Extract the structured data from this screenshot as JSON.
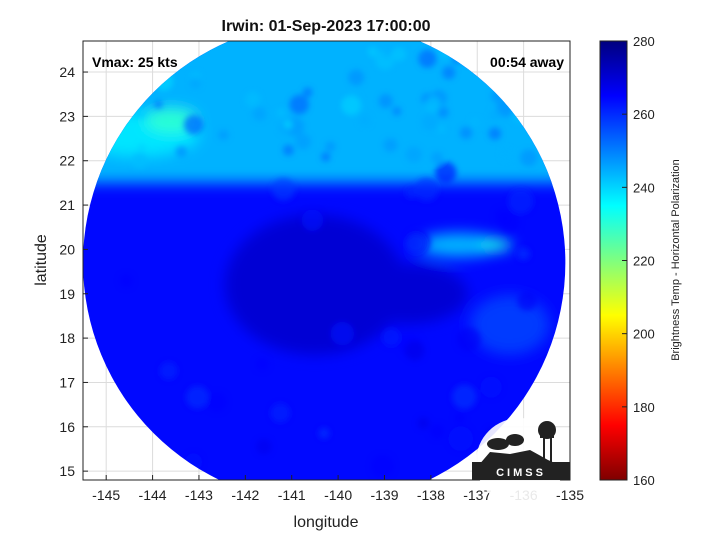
{
  "chart_data": {
    "type": "heatmap",
    "title": "Irwin: 01-Sep-2023 17:00:00",
    "xlabel": "longitude",
    "ylabel": "latitude",
    "xlim": [
      -145.5,
      -135
    ],
    "ylim": [
      14.8,
      24.7
    ],
    "x_ticks": [
      -145,
      -144,
      -143,
      -142,
      -141,
      -140,
      -139,
      -138,
      -137,
      -136,
      -135
    ],
    "y_ticks": [
      15,
      16,
      17,
      18,
      19,
      20,
      21,
      22,
      23,
      24
    ],
    "grid": true,
    "footprint": {
      "shape": "circle",
      "center_lon": -140.3,
      "center_lat": 19.7,
      "radius_deg": 5.2
    },
    "colorbar": {
      "label": "Brightness Temp - Horizontal Polarization",
      "range": [
        160,
        280
      ],
      "ticks": [
        160,
        180,
        200,
        220,
        240,
        260,
        280
      ],
      "colormap": "jet",
      "colors": [
        "#7f0000",
        "#ff0000",
        "#ff7f00",
        "#ffff00",
        "#7fff7f",
        "#00ffff",
        "#007fff",
        "#0000ff",
        "#00007f"
      ]
    },
    "annotations": {
      "vmax": "Vmax: 25 kts",
      "time_away": "00:54 away"
    },
    "features": [
      {
        "description": "background brightness temperature",
        "value_K": 264
      },
      {
        "description": "cooler band north of 21.5N",
        "value_K": 244
      },
      {
        "description": "cold spot near -136.6, 20.1",
        "value_K": 232
      },
      {
        "description": "warm core near -140.5, 19.2",
        "value_K": 270
      }
    ]
  },
  "logo": {
    "text": "CIMSS"
  }
}
